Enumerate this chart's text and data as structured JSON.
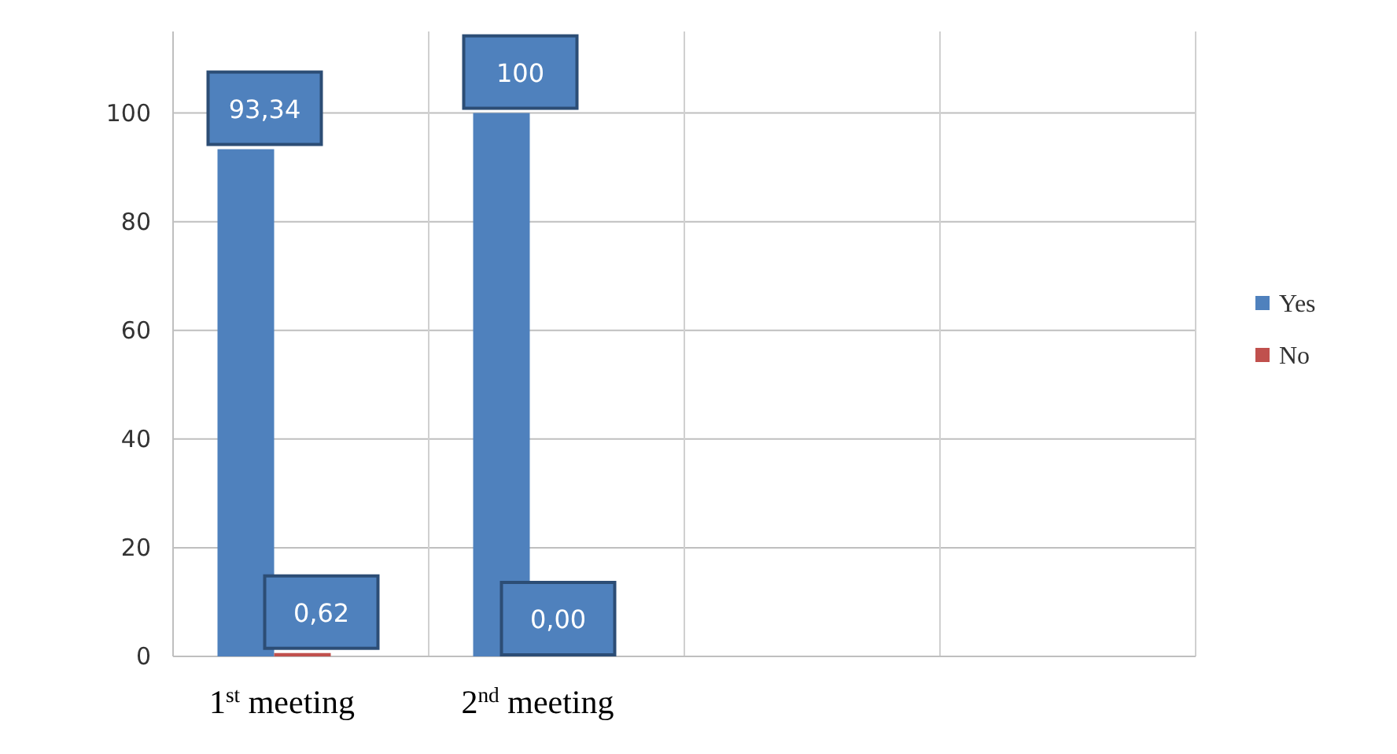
{
  "chart_data": {
    "type": "bar",
    "categories": [
      "1$^{st}$ meeting",
      "2$^{nd}$ meeting",
      null,
      null
    ],
    "series": [
      {
        "name": "Yes",
        "color": "#4f81bd",
        "values": [
          93.34,
          100,
          null,
          null
        ],
        "value_labels": [
          "93,34",
          "100",
          null,
          null
        ]
      },
      {
        "name": "No",
        "color": "#c0504d",
        "values": [
          0.62,
          0,
          null,
          null
        ],
        "value_labels": [
          "0,62",
          "0,00",
          null,
          null
        ]
      }
    ],
    "ylim": [
      0,
      115
    ],
    "yticks": [
      0,
      20,
      40,
      60,
      80,
      100
    ],
    "grid": true,
    "legend": "right"
  }
}
